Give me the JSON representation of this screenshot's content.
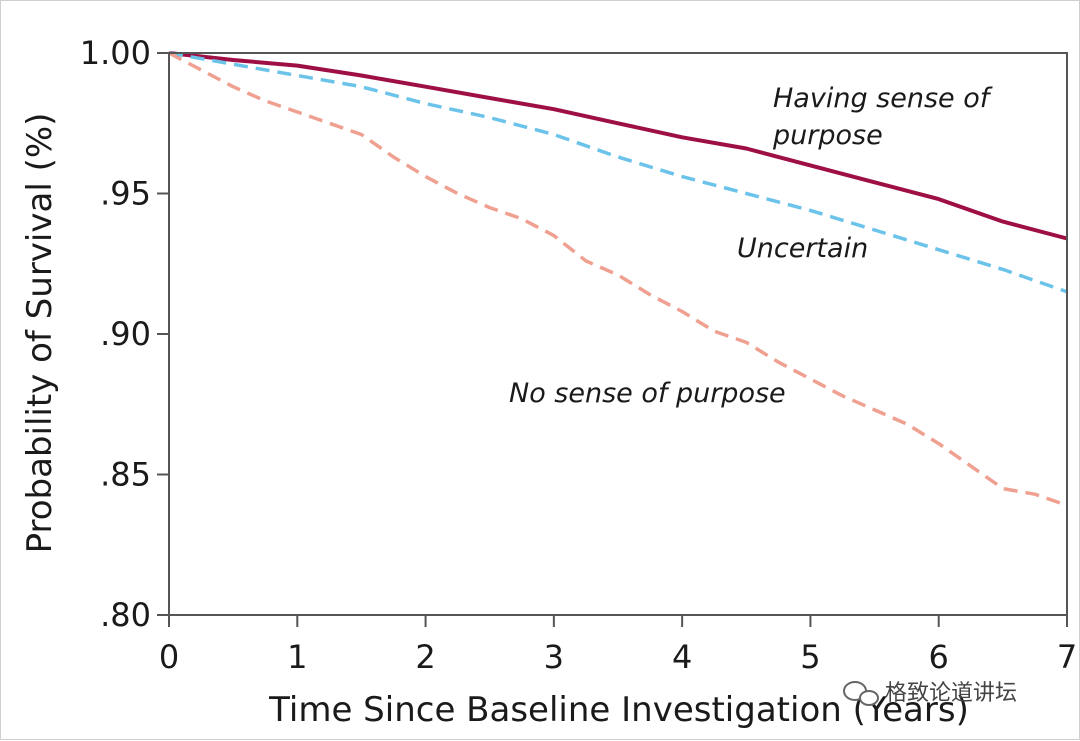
{
  "chart_data": {
    "type": "line",
    "xlabel": "Time Since Baseline Investigation (Years)",
    "ylabel": "Probability of Survival (%)",
    "xlim": [
      0,
      7
    ],
    "ylim": [
      0.8,
      1.0
    ],
    "xticks": [
      0,
      1,
      2,
      3,
      4,
      5,
      6,
      7
    ],
    "xtick_labels": [
      "0",
      "1",
      "2",
      "3",
      "4",
      "5",
      "6",
      "7"
    ],
    "yticks": [
      0.8,
      0.85,
      0.9,
      0.95,
      1.0
    ],
    "ytick_labels": [
      ".80",
      ".85",
      ".90",
      ".95",
      "1.00"
    ],
    "grid": false,
    "series": [
      {
        "name": "Having sense of purpose",
        "color": "#9e1045",
        "style": "solid",
        "x": [
          0,
          0.5,
          1,
          1.5,
          2,
          2.5,
          3,
          3.5,
          4,
          4.5,
          5,
          5.5,
          6,
          6.5,
          7
        ],
        "y": [
          1.0,
          0.9975,
          0.9955,
          0.992,
          0.988,
          0.984,
          0.98,
          0.975,
          0.97,
          0.966,
          0.96,
          0.954,
          0.948,
          0.94,
          0.934
        ]
      },
      {
        "name": "Uncertain",
        "color": "#6cc3ea",
        "style": "dashed",
        "x": [
          0,
          0.5,
          1,
          1.5,
          2,
          2.5,
          3,
          3.5,
          4,
          4.5,
          5,
          5.5,
          6,
          6.5,
          7
        ],
        "y": [
          1.0,
          0.996,
          0.992,
          0.988,
          0.982,
          0.977,
          0.971,
          0.963,
          0.956,
          0.95,
          0.944,
          0.937,
          0.93,
          0.923,
          0.915
        ]
      },
      {
        "name": "No sense of purpose",
        "color": "#f0a090",
        "style": "dashed",
        "x": [
          0,
          0.25,
          0.5,
          0.75,
          1,
          1.25,
          1.5,
          1.75,
          2,
          2.25,
          2.5,
          2.75,
          3,
          3.25,
          3.5,
          3.75,
          4,
          4.25,
          4.5,
          4.75,
          5,
          5.25,
          5.5,
          5.75,
          6,
          6.25,
          6.5,
          6.75,
          7
        ],
        "y": [
          1.0,
          0.994,
          0.988,
          0.983,
          0.979,
          0.975,
          0.971,
          0.963,
          0.956,
          0.95,
          0.945,
          0.941,
          0.935,
          0.926,
          0.921,
          0.914,
          0.908,
          0.901,
          0.897,
          0.89,
          0.884,
          0.878,
          0.873,
          0.868,
          0.861,
          0.853,
          0.845,
          0.843,
          0.839
        ]
      }
    ]
  },
  "labels": {
    "purpose_line1": "Having sense of",
    "purpose_line2": "purpose",
    "uncertain": "Uncertain",
    "no_purpose": "No sense of purpose",
    "watermark": "格致论道讲坛"
  }
}
